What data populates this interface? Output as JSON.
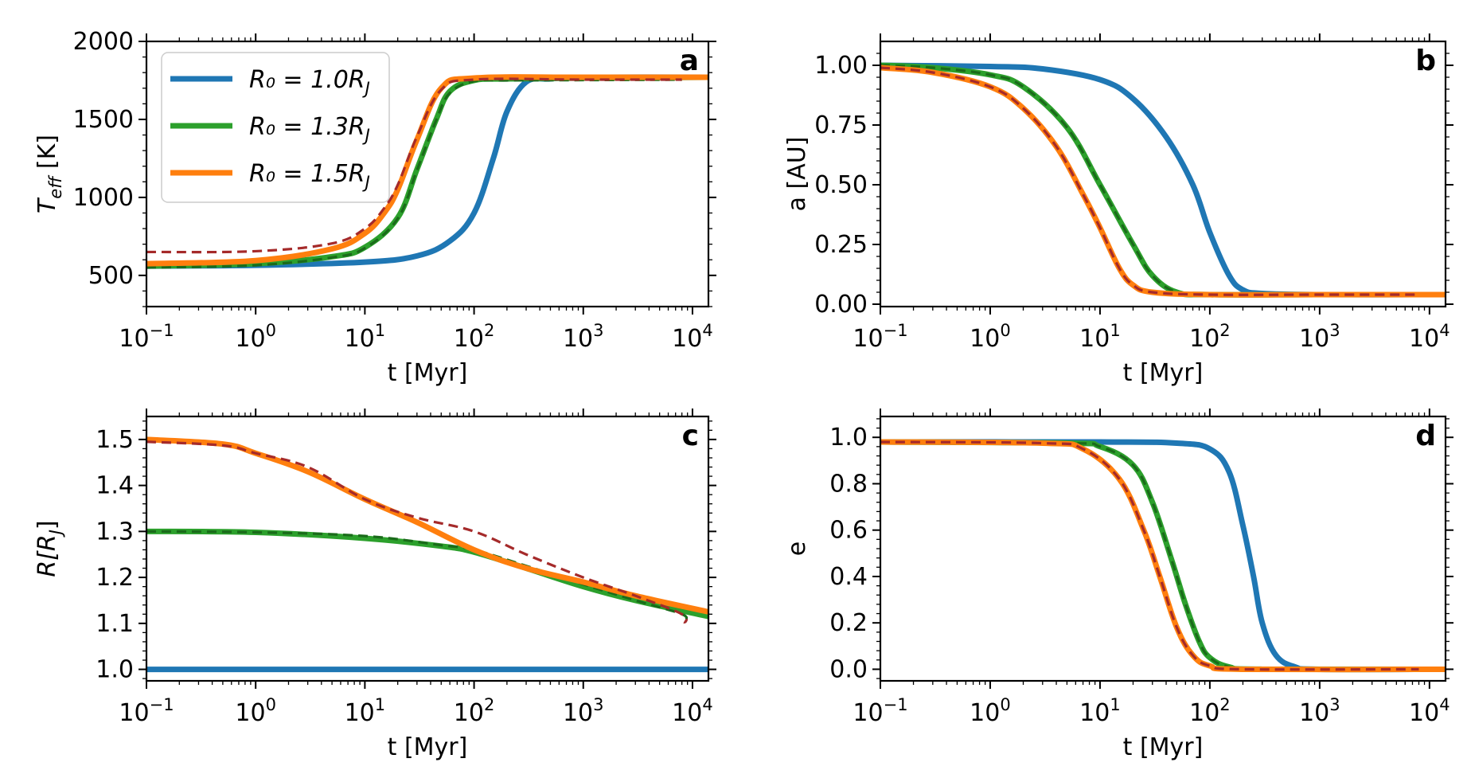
{
  "figure": {
    "legend": [
      {
        "label": "R₀ = 1.0R",
        "sub": "J",
        "color": "#1f77b4"
      },
      {
        "label": "R₀ = 1.3R",
        "sub": "J",
        "color": "#2ca02c"
      },
      {
        "label": "R₀ = 1.5R",
        "sub": "J",
        "color": "#ff7f0e"
      }
    ],
    "reference_colors": {
      "green_ref": "#1a6b1a",
      "orange_ref": "#a52a2a"
    }
  },
  "chart_data": [
    {
      "id": "a",
      "type": "line",
      "letter": "a",
      "xlabel": "t [Myr]",
      "ylabel": "T",
      "ylabel_sub": "eff",
      "ylabel_unit": " [K]",
      "xscale": "log",
      "xlim": [
        0.1,
        14000
      ],
      "ylim": [
        300,
        2000
      ],
      "yticks": [
        500,
        1000,
        1500,
        2000
      ],
      "ytick_labels": [
        "500",
        "1000",
        "1500",
        "2000"
      ],
      "legend_location": "upper-left",
      "series": [
        {
          "name": "R0 = 1.0RJ",
          "style": "solid",
          "color": "#1f77b4",
          "x": [
            0.1,
            1,
            10,
            30,
            60,
            100,
            150,
            200,
            300,
            500,
            1000,
            14000
          ],
          "y": [
            560,
            565,
            585,
            625,
            720,
            900,
            1250,
            1550,
            1740,
            1760,
            1770,
            1770
          ]
        },
        {
          "name": "R0 = 1.3RJ",
          "style": "solid",
          "color": "#2ca02c",
          "x": [
            0.1,
            1,
            5,
            10,
            20,
            30,
            45,
            60,
            100,
            200,
            1000,
            14000
          ],
          "y": [
            560,
            575,
            620,
            680,
            870,
            1180,
            1500,
            1680,
            1750,
            1760,
            1765,
            1770
          ]
        },
        {
          "name": "R0 = 1.3RJ reference",
          "style": "dashed",
          "color": "#1a6b1a",
          "x": [
            0.1,
            1,
            5,
            10,
            20,
            30,
            45,
            60,
            100,
            200,
            1000,
            8000
          ],
          "y": [
            550,
            565,
            615,
            675,
            865,
            1175,
            1495,
            1670,
            1745,
            1750,
            1752,
            1755
          ]
        },
        {
          "name": "R0 = 1.5RJ",
          "style": "solid",
          "color": "#ff7f0e",
          "x": [
            0.1,
            1,
            5,
            10,
            15,
            20,
            30,
            50,
            100,
            1000,
            14000
          ],
          "y": [
            575,
            595,
            670,
            770,
            900,
            1050,
            1370,
            1700,
            1765,
            1770,
            1770
          ]
        },
        {
          "name": "R0 = 1.5RJ reference",
          "style": "dashed",
          "color": "#a52a2a",
          "x": [
            0.1,
            1,
            5,
            10,
            15,
            20,
            30,
            50,
            100,
            1000,
            8000
          ],
          "y": [
            650,
            655,
            705,
            800,
            930,
            1080,
            1390,
            1690,
            1755,
            1755,
            1755
          ]
        }
      ]
    },
    {
      "id": "b",
      "type": "line",
      "letter": "b",
      "xlabel": "t [Myr]",
      "ylabel": "a [AU]",
      "ylabel_sub": "",
      "ylabel_unit": "",
      "xscale": "log",
      "xlim": [
        0.1,
        14000
      ],
      "ylim": [
        -0.01,
        1.1
      ],
      "yticks": [
        0.0,
        0.25,
        0.5,
        0.75,
        1.0
      ],
      "ytick_labels": [
        "0.00",
        "0.25",
        "0.50",
        "0.75",
        "1.00"
      ],
      "series": [
        {
          "name": "R0 = 1.0RJ",
          "style": "solid",
          "color": "#1f77b4",
          "x": [
            0.1,
            1,
            3,
            10,
            20,
            40,
            70,
            100,
            150,
            200,
            300,
            1000,
            14000
          ],
          "y": [
            1.0,
            0.995,
            0.985,
            0.94,
            0.86,
            0.7,
            0.5,
            0.3,
            0.12,
            0.06,
            0.045,
            0.04,
            0.04
          ]
        },
        {
          "name": "R0 = 1.3RJ",
          "style": "solid",
          "color": "#2ca02c",
          "x": [
            0.1,
            0.3,
            1,
            2,
            5,
            10,
            20,
            30,
            50,
            100,
            1000,
            14000
          ],
          "y": [
            1.0,
            0.99,
            0.96,
            0.91,
            0.74,
            0.5,
            0.25,
            0.12,
            0.05,
            0.04,
            0.04,
            0.04
          ]
        },
        {
          "name": "R0 = 1.3RJ reference",
          "style": "dashed",
          "color": "#1a6b1a",
          "x": [
            0.1,
            0.3,
            1,
            2,
            5,
            10,
            20,
            30,
            50,
            100,
            1000,
            8000
          ],
          "y": [
            1.0,
            0.99,
            0.96,
            0.91,
            0.74,
            0.5,
            0.25,
            0.12,
            0.05,
            0.04,
            0.04,
            0.04
          ]
        },
        {
          "name": "R0 = 1.5RJ",
          "style": "solid",
          "color": "#ff7f0e",
          "x": [
            0.1,
            0.3,
            1,
            2,
            4,
            7,
            10,
            15,
            20,
            30,
            100,
            1000,
            14000
          ],
          "y": [
            0.99,
            0.97,
            0.91,
            0.82,
            0.66,
            0.46,
            0.32,
            0.15,
            0.08,
            0.05,
            0.04,
            0.04,
            0.04
          ]
        },
        {
          "name": "R0 = 1.5RJ reference",
          "style": "dashed",
          "color": "#a52a2a",
          "x": [
            0.1,
            0.3,
            1,
            2,
            4,
            7,
            10,
            15,
            20,
            30,
            100,
            1000,
            8000
          ],
          "y": [
            0.99,
            0.97,
            0.91,
            0.82,
            0.66,
            0.46,
            0.32,
            0.15,
            0.08,
            0.05,
            0.04,
            0.04,
            0.04
          ]
        }
      ]
    },
    {
      "id": "c",
      "type": "line",
      "letter": "c",
      "xlabel": "t [Myr]",
      "ylabel": "R[R",
      "ylabel_sub": "J",
      "ylabel_unit": "]",
      "xscale": "log",
      "xlim": [
        0.1,
        14000
      ],
      "ylim": [
        0.975,
        1.55
      ],
      "yticks": [
        1.0,
        1.1,
        1.2,
        1.3,
        1.4,
        1.5
      ],
      "ytick_labels": [
        "1.0",
        "1.1",
        "1.2",
        "1.3",
        "1.4",
        "1.5"
      ],
      "series": [
        {
          "name": "R0 = 1.0RJ",
          "style": "solid",
          "color": "#1f77b4",
          "x": [
            0.1,
            14000
          ],
          "y": [
            1.0,
            1.0
          ]
        },
        {
          "name": "R0 = 1.3RJ",
          "style": "solid",
          "color": "#2ca02c",
          "x": [
            0.1,
            1,
            10,
            50,
            100,
            300,
            1000,
            3000,
            14000
          ],
          "y": [
            1.3,
            1.298,
            1.285,
            1.268,
            1.255,
            1.22,
            1.18,
            1.15,
            1.115
          ]
        },
        {
          "name": "R0 = 1.3RJ reference",
          "style": "dashed",
          "color": "#1a6b1a",
          "x": [
            0.1,
            1,
            10,
            50,
            100,
            300,
            1000,
            3000,
            8000,
            8500
          ],
          "y": [
            1.3,
            1.298,
            1.29,
            1.27,
            1.26,
            1.225,
            1.185,
            1.15,
            1.12,
            1.105
          ]
        },
        {
          "name": "R0 = 1.5RJ",
          "style": "solid",
          "color": "#ff7f0e",
          "x": [
            0.1,
            0.5,
            1,
            3,
            10,
            30,
            100,
            300,
            1000,
            3000,
            14000
          ],
          "y": [
            1.5,
            1.49,
            1.47,
            1.43,
            1.37,
            1.32,
            1.26,
            1.22,
            1.19,
            1.16,
            1.125
          ]
        },
        {
          "name": "R0 = 1.5RJ reference",
          "style": "dashed",
          "color": "#a52a2a",
          "x": [
            0.1,
            0.5,
            1,
            3,
            10,
            30,
            100,
            300,
            1000,
            3000,
            8000,
            8500
          ],
          "y": [
            1.495,
            1.487,
            1.47,
            1.44,
            1.37,
            1.33,
            1.3,
            1.25,
            1.2,
            1.16,
            1.12,
            1.1
          ]
        }
      ]
    },
    {
      "id": "d",
      "type": "line",
      "letter": "d",
      "xlabel": "t [Myr]",
      "ylabel": "e",
      "ylabel_sub": "",
      "ylabel_unit": "",
      "xscale": "log",
      "xlim": [
        0.1,
        14000
      ],
      "ylim": [
        -0.05,
        1.09
      ],
      "yticks": [
        0.0,
        0.2,
        0.4,
        0.6,
        0.8,
        1.0
      ],
      "ytick_labels": [
        "0.0",
        "0.2",
        "0.4",
        "0.6",
        "0.8",
        "1.0"
      ],
      "series": [
        {
          "name": "R0 = 1.0RJ",
          "style": "solid",
          "color": "#1f77b4",
          "x": [
            0.1,
            10,
            50,
            100,
            150,
            200,
            250,
            300,
            400,
            600,
            1000,
            14000
          ],
          "y": [
            0.98,
            0.98,
            0.975,
            0.95,
            0.85,
            0.62,
            0.4,
            0.2,
            0.06,
            0.01,
            0.0,
            0.0
          ]
        },
        {
          "name": "R0 = 1.3RJ",
          "style": "solid",
          "color": "#2ca02c",
          "x": [
            0.1,
            5,
            10,
            20,
            30,
            45,
            60,
            80,
            100,
            150,
            300,
            14000
          ],
          "y": [
            0.98,
            0.975,
            0.96,
            0.88,
            0.72,
            0.47,
            0.28,
            0.12,
            0.05,
            0.01,
            0.0,
            0.0
          ]
        },
        {
          "name": "R0 = 1.3RJ reference",
          "style": "dashed",
          "color": "#1a6b1a",
          "x": [
            0.1,
            5,
            10,
            20,
            30,
            45,
            60,
            80,
            100,
            150,
            300,
            8000
          ],
          "y": [
            0.98,
            0.975,
            0.96,
            0.88,
            0.72,
            0.47,
            0.28,
            0.12,
            0.05,
            0.01,
            0.0,
            0.0
          ]
        },
        {
          "name": "R0 = 1.5RJ",
          "style": "solid",
          "color": "#ff7f0e",
          "x": [
            0.1,
            3,
            7,
            15,
            25,
            35,
            50,
            70,
            100,
            200,
            14000
          ],
          "y": [
            0.98,
            0.975,
            0.95,
            0.82,
            0.6,
            0.4,
            0.18,
            0.06,
            0.015,
            0.0,
            0.0
          ]
        },
        {
          "name": "R0 = 1.5RJ reference",
          "style": "dashed",
          "color": "#a52a2a",
          "x": [
            0.1,
            3,
            7,
            15,
            25,
            35,
            50,
            70,
            100,
            200,
            8000
          ],
          "y": [
            0.98,
            0.975,
            0.95,
            0.82,
            0.6,
            0.4,
            0.18,
            0.06,
            0.015,
            0.0,
            0.0
          ]
        }
      ]
    }
  ]
}
